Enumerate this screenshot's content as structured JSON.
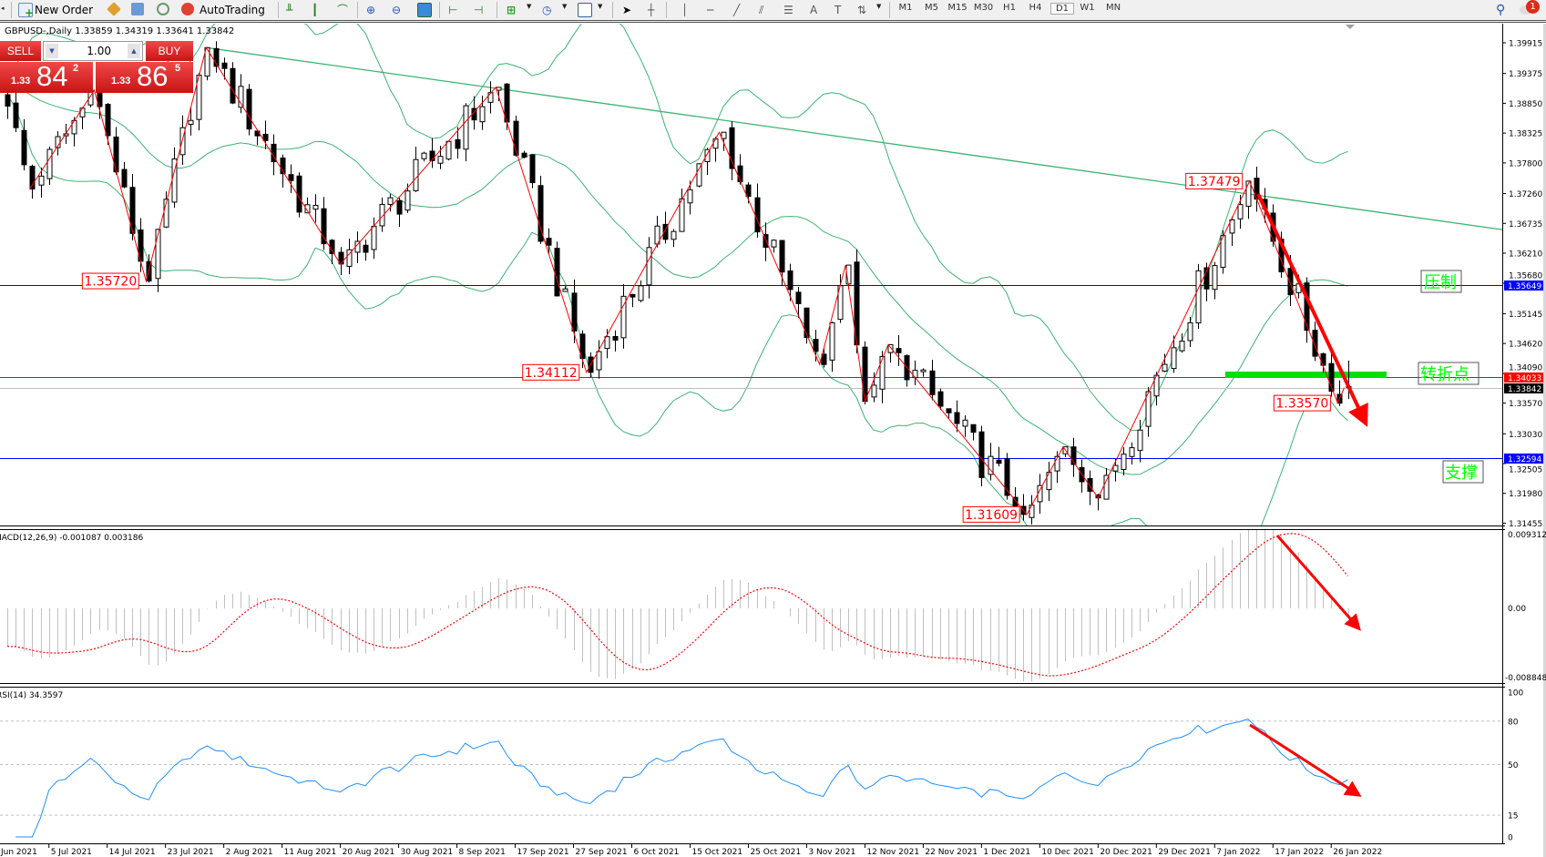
{
  "toolbar": {
    "new_order": "New Order",
    "autotrading": "AutoTrading",
    "timeframes": [
      "M1",
      "M5",
      "M15",
      "M30",
      "H1",
      "H4",
      "D1",
      "W1",
      "MN"
    ],
    "active_timeframe": "D1",
    "drawing_tools": [
      "cursor",
      "crosshair",
      "vertical-line",
      "horizontal-line",
      "trendline",
      "equidistant-channel",
      "fibonacci",
      "text",
      "text-label",
      "arrows"
    ],
    "notification_count": "1"
  },
  "chart": {
    "symbol_info": "GBPUSD-,Daily 1.33859 1.34319 1.33641 1.33842"
  },
  "one_click": {
    "sell": "SELL",
    "buy": "BUY",
    "volume": "1.00",
    "sell_price": {
      "prefix": "1.33",
      "big": "84",
      "small": "2"
    },
    "buy_price": {
      "prefix": "1.33",
      "big": "86",
      "small": "5"
    }
  },
  "annotations": {
    "resistance": "压制",
    "turning_point": "转折点",
    "support": "支撑"
  },
  "price_lines": {
    "resistance": "1.35649",
    "turning_point": "1.34033",
    "bid": "1.33842",
    "support": "1.32594"
  },
  "price_axis": [
    "1.39915",
    "1.39375",
    "1.38850",
    "1.38325",
    "1.37800",
    "1.37260",
    "1.36735",
    "1.36210",
    "1.35680",
    "1.35145",
    "1.34620",
    "1.34090",
    "1.33570",
    "1.33030",
    "1.32505",
    "1.31980",
    "1.31455"
  ],
  "macd": {
    "label": "MACD(12,26,9) -0.001087 0.003186",
    "axis": [
      "0.009312",
      "0.00",
      "-0.008848"
    ]
  },
  "rsi": {
    "label": "RSI(14) 34.3597",
    "axis": [
      "100",
      "80",
      "50",
      "15",
      "0"
    ],
    "levels": [
      80,
      50,
      15
    ]
  },
  "time_axis": {
    "first_partial": "Jun 2021",
    "labels": [
      "5 Jul 2021",
      "14 Jul 2021",
      "23 Jul 2021",
      "2 Aug 2021",
      "11 Aug 2021",
      "20 Aug 2021",
      "30 Aug 2021",
      "8 Sep 2021",
      "17 Sep 2021",
      "27 Sep 2021",
      "6 Oct 2021",
      "15 Oct 2021",
      "25 Oct 2021",
      "3 Nov 2021",
      "12 Nov 2021",
      "22 Nov 2021",
      "1 Dec 2021",
      "10 Dec 2021",
      "20 Dec 2021",
      "29 Dec 2021",
      "7 Jan 2022",
      "17 Jan 2022",
      "26 Jan 2022"
    ]
  },
  "colors": {
    "bollinger": "#3cb371",
    "trendline": "#3cb371",
    "zigzag": "#ff0000",
    "resistance_line": "#0000ff",
    "support_line": "#0000ff",
    "turning_line": "#ff0000",
    "bid_line": "#c0c0c0",
    "green_zone": "#00e000",
    "macd_hist": "#c0c0c0",
    "macd_signal": "#ff0000",
    "rsi_line": "#1e90ff",
    "annotation_text": "#00ff00",
    "sell_buy": "#d42020"
  },
  "chart_data": {
    "type": "candlestick",
    "symbol": "GBPUSD",
    "timeframe": "Daily",
    "last_bar": {
      "open": 1.33859,
      "high": 1.34319,
      "low": 1.33641,
      "close": 1.33842
    },
    "ylim": [
      1.31455,
      1.39915
    ],
    "zigzag_pivots": [
      {
        "date": "2021-06-29",
        "price": 1.388
      },
      {
        "date": "2021-07-02",
        "price": 1.3734
      },
      {
        "date": "2021-07-12",
        "price": 1.3908
      },
      {
        "date": "2021-07-20",
        "price": 1.3572,
        "label": "1.35720"
      },
      {
        "date": "2021-07-30",
        "price": 1.3983
      },
      {
        "date": "2021-08-20",
        "price": 1.3602
      },
      {
        "date": "2021-09-14",
        "price": 1.3913
      },
      {
        "date": "2021-09-29",
        "price": 1.34112,
        "label": "1.34112"
      },
      {
        "date": "2021-10-20",
        "price": 1.3834
      },
      {
        "date": "2021-11-05",
        "price": 1.3425
      },
      {
        "date": "2021-11-09",
        "price": 1.36
      },
      {
        "date": "2021-11-12",
        "price": 1.336
      },
      {
        "date": "2021-11-16",
        "price": 1.346
      },
      {
        "date": "2021-12-08",
        "price": 1.31609,
        "label": "1.31609"
      },
      {
        "date": "2021-12-14",
        "price": 1.328
      },
      {
        "date": "2021-12-20",
        "price": 1.319
      },
      {
        "date": "2022-01-13",
        "price": 1.37479,
        "label": "1.37479"
      },
      {
        "date": "2022-01-27",
        "price": 1.3357,
        "label": "1.33570"
      },
      {
        "date": "2022-01-28",
        "price": 1.33842
      }
    ],
    "trendline": [
      {
        "date": "2021-07-30",
        "price": 1.3983
      },
      {
        "date": "2022-01-13",
        "price": 1.3725
      }
    ],
    "horizontal_levels": [
      1.35649,
      1.34033,
      1.32594
    ],
    "indicators": [
      "Bollinger Bands(20,2)",
      "ZigZag",
      "MACD(12,26,9)",
      "RSI(14)"
    ]
  }
}
